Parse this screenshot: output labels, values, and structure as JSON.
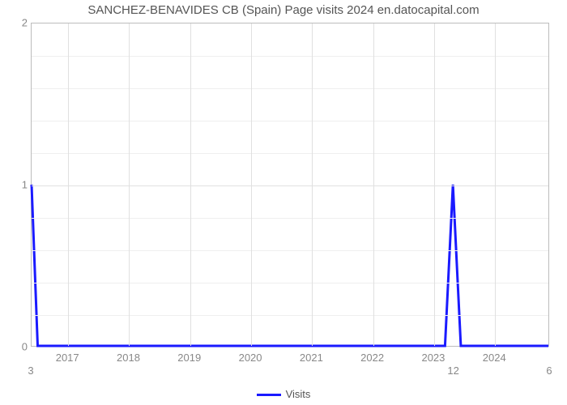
{
  "chart": {
    "type": "line",
    "title": "SANCHEZ-BENAVIDES CB (Spain) Page visits 2024 en.datocapital.com",
    "title_fontsize": 15,
    "title_color": "#555555",
    "background_color": "#ffffff",
    "plot_border_color": "#bcbcbc",
    "grid_color": "#e0e0e0",
    "minor_grid_color": "#efefef",
    "axis_label_color": "#888888",
    "axis_label_fontsize": 13,
    "y_axis": {
      "lim": [
        0,
        2
      ],
      "ticks": [
        0,
        1,
        2
      ],
      "minor_divisions_per_interval": 5
    },
    "x_axis_top": {
      "domain": [
        0,
        1
      ],
      "ticks": [
        {
          "pos": 0.0,
          "label": "3"
        },
        {
          "pos": 0.815,
          "label": "12"
        },
        {
          "pos": 1.0,
          "label": "6"
        }
      ],
      "vgrid_positions": [
        0.0,
        0.815,
        1.0
      ]
    },
    "x_axis_bottom": {
      "domain": [
        2016.4,
        2024.9
      ],
      "ticks": [
        2017,
        2018,
        2019,
        2020,
        2021,
        2022,
        2023,
        2024
      ],
      "vgrid_at_ticks": true
    },
    "series": {
      "name": "Visits",
      "color": "#1a1aff",
      "line_width": 3,
      "points": [
        {
          "x": 2016.4,
          "y": 1.0
        },
        {
          "x": 2016.5,
          "y": 0.0
        },
        {
          "x": 2023.2,
          "y": 0.0
        },
        {
          "x": 2023.33,
          "y": 1.0
        },
        {
          "x": 2023.46,
          "y": 0.0
        },
        {
          "x": 2024.9,
          "y": 0.0
        }
      ]
    },
    "legend": {
      "position": "bottom-center",
      "text_color": "#555555"
    }
  }
}
